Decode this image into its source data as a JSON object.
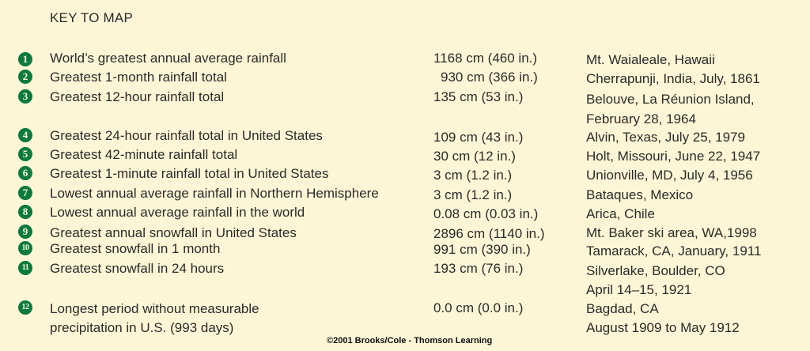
{
  "title": "KEY TO MAP",
  "colors": {
    "background": "#fdf6d6",
    "badge": "#0b7a3e",
    "text": "#2a2a2a"
  },
  "entries": [
    {
      "number": "1",
      "description": "World’s greatest annual average rainfall",
      "amount": "1168 cm (460 in.)",
      "location": "Mt. Waialeale, Hawaii"
    },
    {
      "number": "2",
      "description": "Greatest 1-month rainfall total",
      "amount": "930 cm (366 in.)",
      "location": "Cherrapunji, India, July, 1861"
    },
    {
      "number": "3",
      "description": "Greatest 12-hour rainfall total",
      "amount": "135 cm (53 in.)",
      "location": "Belouve, La Réunion Island,",
      "location_line2": "February 28, 1964"
    },
    {
      "number": "4",
      "description": "Greatest 24-hour rainfall total in United States",
      "amount": "109 cm (43 in.)",
      "location": "Alvin, Texas, July 25, 1979"
    },
    {
      "number": "5",
      "description": "Greatest 42-minute rainfall total",
      "amount": "30 cm (12 in.)",
      "location": "Holt, Missouri, June  22, 1947"
    },
    {
      "number": "6",
      "description": "Greatest 1-minute rainfall total in United States",
      "amount": "3 cm (1.2 in.)",
      "location": "Unionville, MD, July 4, 1956"
    },
    {
      "number": "7",
      "description": "Lowest annual average rainfall in Northern Hemisphere",
      "amount": "3 cm (1.2 in.)",
      "location": "Bataques, Mexico"
    },
    {
      "number": "8",
      "description": "Lowest annual average rainfall in the world",
      "amount": "0.08 cm (0.03 in.)",
      "location": "Arica, Chile"
    },
    {
      "number": "9",
      "description": "Greatest annual snowfall in United States",
      "amount": "2896 cm (1140 in.)",
      "location": "Mt. Baker ski area, WA,1998"
    },
    {
      "number": "10",
      "description": "Greatest snowfall in 1 month",
      "amount": "991 cm (390 in.)",
      "location": "Tamarack, CA, January, 1911"
    },
    {
      "number": "11",
      "description": "Greatest snowfall in 24 hours",
      "amount": "193 cm (76 in.)",
      "location": "Silverlake, Boulder, CO",
      "location_line2": "April 14–15, 1921"
    },
    {
      "number": "12",
      "description": "Longest period without measurable",
      "description_line2": "precipitation in U.S. (993 days)",
      "amount": "0.0 cm (0.0 in.)",
      "location": "Bagdad, CA",
      "location_line2": "August 1909 to May 1912"
    }
  ],
  "copyright": "©2001 Brooks/Cole - Thomson Learning"
}
